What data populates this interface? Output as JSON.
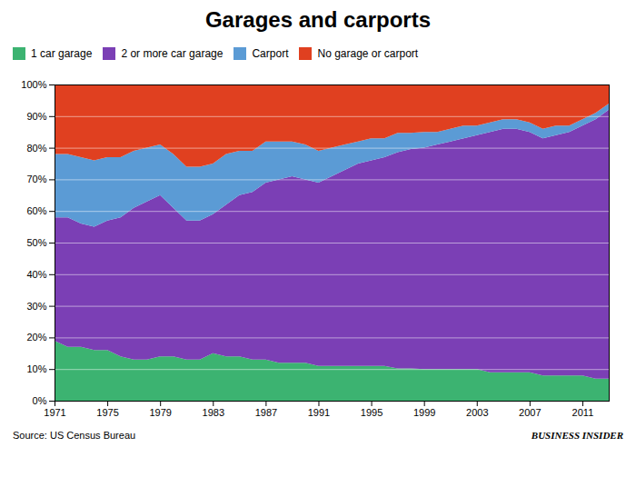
{
  "chart_data": {
    "type": "area",
    "stacked": true,
    "title": "Garages and carports",
    "annotations": [
      "Source: US Census Bureau",
      "BUSINESS INSIDER"
    ],
    "legend": "top",
    "grid": true,
    "x": [
      1971,
      1972,
      1973,
      1974,
      1975,
      1976,
      1977,
      1978,
      1979,
      1980,
      1981,
      1982,
      1983,
      1984,
      1985,
      1986,
      1987,
      1988,
      1989,
      1990,
      1991,
      1992,
      1993,
      1994,
      1995,
      1996,
      1997,
      1998,
      1999,
      2000,
      2001,
      2002,
      2003,
      2004,
      2005,
      2006,
      2007,
      2008,
      2009,
      2010,
      2011,
      2012,
      2013
    ],
    "series": [
      {
        "name": "1 car garage",
        "color": "#3cb371",
        "values": [
          19,
          17,
          17,
          16,
          16,
          14,
          13,
          13,
          14,
          14,
          13,
          13,
          15,
          14,
          14,
          13,
          13,
          12,
          12,
          12,
          11,
          11,
          11,
          11,
          11,
          11,
          10.204082,
          10.204082,
          10,
          10,
          10,
          10,
          10,
          9,
          9,
          9,
          9,
          8,
          8,
          8,
          8,
          7,
          7
        ]
      },
      {
        "name": "2 or more car garage",
        "color": "#7b3fb5",
        "values": [
          39,
          41,
          39,
          39,
          41,
          44,
          48,
          50,
          51,
          47,
          44,
          44,
          44,
          48,
          51,
          53,
          56,
          58,
          59,
          58,
          58,
          60,
          62,
          64,
          65,
          66,
          68.367347,
          69.387755,
          70,
          71,
          72,
          73,
          74,
          76,
          77,
          77,
          76,
          75,
          76,
          77,
          79,
          82,
          85
        ]
      },
      {
        "name": "Carport",
        "color": "#5b9bd5",
        "values": [
          20,
          20,
          21,
          21,
          20,
          19,
          18,
          17,
          16,
          17,
          17,
          17,
          16,
          16,
          14,
          13,
          13,
          12,
          11,
          11,
          10,
          9,
          8,
          7,
          7,
          6,
          6.122449,
          5.102041,
          5,
          4,
          4,
          4,
          3,
          3,
          3,
          3,
          3,
          3,
          3,
          2,
          2,
          2,
          2
        ]
      },
      {
        "name": "No garage or carport",
        "color": "#e04020",
        "values": [
          22,
          22,
          23,
          24,
          23,
          23,
          21,
          20,
          19,
          22,
          26,
          26,
          25,
          22,
          21,
          21,
          18,
          18,
          18,
          19,
          21,
          20,
          19,
          18,
          17,
          17,
          15.306122,
          15.306122,
          15,
          15,
          14,
          13,
          13,
          12,
          11,
          11,
          12,
          14,
          13,
          13,
          11,
          9,
          6
        ]
      }
    ],
    "xlim": [
      1971,
      2013
    ],
    "xticks": [
      1971,
      1975,
      1979,
      1983,
      1987,
      1991,
      1995,
      1999,
      2003,
      2007,
      2011
    ],
    "ylim": [
      0,
      100
    ],
    "yticks": [
      {
        "value": 0,
        "label": "0%"
      },
      {
        "value": 10,
        "label": "10%"
      },
      {
        "value": 20,
        "label": "20%"
      },
      {
        "value": 30,
        "label": "30%"
      },
      {
        "value": 40,
        "label": "40%"
      },
      {
        "value": 50,
        "label": "50%"
      },
      {
        "value": 60,
        "label": "60%"
      },
      {
        "value": 70,
        "label": "70%"
      },
      {
        "value": 80,
        "label": "80%"
      },
      {
        "value": 90,
        "label": "90%"
      },
      {
        "value": 100,
        "label": "100%"
      }
    ]
  }
}
